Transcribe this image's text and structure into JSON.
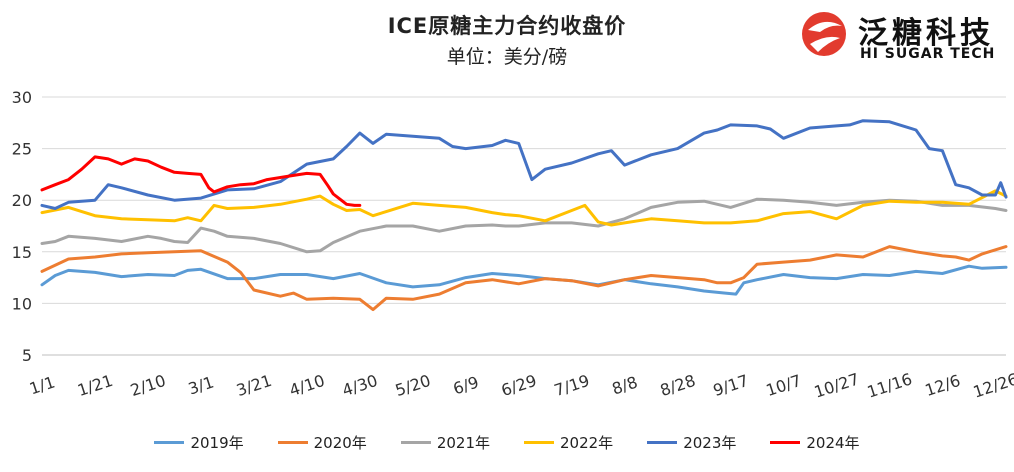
{
  "header": {
    "title": "ICE原糖主力合约收盘价",
    "subtitle": "单位：美分/磅"
  },
  "logo": {
    "name_cn": "泛糖科技",
    "name_en": "HI SUGAR TECH",
    "mark_icon": "hi-sugar-logo-icon"
  },
  "chart_data": {
    "type": "line",
    "title": "ICE原糖主力合约收盘价",
    "subtitle": "单位：美分/磅",
    "ylim": [
      5,
      30
    ],
    "yticks": [
      5,
      10,
      15,
      20,
      25,
      30
    ],
    "xlim": [
      0,
      364
    ],
    "xticks": [
      {
        "label": "1/1",
        "x": 0
      },
      {
        "label": "1/21",
        "x": 20
      },
      {
        "label": "2/10",
        "x": 40
      },
      {
        "label": "3/1",
        "x": 60
      },
      {
        "label": "3/21",
        "x": 80
      },
      {
        "label": "4/10",
        "x": 100
      },
      {
        "label": "4/30",
        "x": 120
      },
      {
        "label": "5/20",
        "x": 140
      },
      {
        "label": "6/9",
        "x": 160
      },
      {
        "label": "6/29",
        "x": 180
      },
      {
        "label": "7/19",
        "x": 200
      },
      {
        "label": "8/8",
        "x": 220
      },
      {
        "label": "8/28",
        "x": 240
      },
      {
        "label": "9/17",
        "x": 260
      },
      {
        "label": "10/7",
        "x": 280
      },
      {
        "label": "10/27",
        "x": 300
      },
      {
        "label": "11/16",
        "x": 320
      },
      {
        "label": "12/6",
        "x": 340
      },
      {
        "label": "12/26",
        "x": 360
      }
    ],
    "grid": true,
    "legend_position": "bottom",
    "series": [
      {
        "name": "2019年",
        "color": "#5b9bd5",
        "x": [
          0,
          5,
          10,
          20,
          30,
          40,
          50,
          55,
          60,
          70,
          80,
          90,
          100,
          110,
          120,
          130,
          140,
          150,
          160,
          170,
          180,
          190,
          200,
          210,
          220,
          230,
          240,
          250,
          258,
          262,
          265,
          270,
          280,
          290,
          300,
          310,
          320,
          330,
          340,
          350,
          355,
          364
        ],
        "y": [
          11.8,
          12.7,
          13.2,
          13.0,
          12.6,
          12.8,
          12.7,
          13.2,
          13.3,
          12.4,
          12.4,
          12.8,
          12.8,
          12.4,
          12.9,
          12.0,
          11.6,
          11.8,
          12.5,
          12.9,
          12.7,
          12.4,
          12.2,
          11.8,
          12.3,
          11.9,
          11.6,
          11.2,
          11.0,
          10.9,
          12.0,
          12.3,
          12.8,
          12.5,
          12.4,
          12.8,
          12.7,
          13.1,
          12.9,
          13.6,
          13.4,
          13.5
        ]
      },
      {
        "name": "2020年",
        "color": "#ed7d31",
        "x": [
          0,
          10,
          20,
          30,
          40,
          50,
          60,
          70,
          75,
          80,
          90,
          95,
          100,
          110,
          120,
          125,
          130,
          140,
          150,
          160,
          170,
          180,
          190,
          200,
          210,
          220,
          230,
          240,
          250,
          255,
          260,
          265,
          270,
          280,
          290,
          300,
          310,
          320,
          330,
          340,
          345,
          350,
          355,
          364
        ],
        "y": [
          13.1,
          14.3,
          14.5,
          14.8,
          14.9,
          15.0,
          15.1,
          14.0,
          13.0,
          11.3,
          10.7,
          11.0,
          10.4,
          10.5,
          10.4,
          9.4,
          10.5,
          10.4,
          10.9,
          12.0,
          12.3,
          11.9,
          12.4,
          12.2,
          11.7,
          12.3,
          12.7,
          12.5,
          12.3,
          12.0,
          12.0,
          12.5,
          13.8,
          14.0,
          14.2,
          14.7,
          14.5,
          15.5,
          15.0,
          14.6,
          14.5,
          14.2,
          14.8,
          15.5
        ]
      },
      {
        "name": "2021年",
        "color": "#a5a5a5",
        "x": [
          0,
          5,
          10,
          20,
          30,
          40,
          45,
          50,
          55,
          60,
          65,
          70,
          80,
          90,
          100,
          105,
          110,
          120,
          130,
          140,
          150,
          160,
          170,
          175,
          180,
          190,
          200,
          210,
          220,
          230,
          240,
          250,
          260,
          270,
          280,
          290,
          300,
          310,
          320,
          330,
          340,
          350,
          360,
          364
        ],
        "y": [
          15.8,
          16.0,
          16.5,
          16.3,
          16.0,
          16.5,
          16.3,
          16.0,
          15.9,
          17.3,
          17.0,
          16.5,
          16.3,
          15.8,
          15.0,
          15.1,
          15.9,
          17.0,
          17.5,
          17.5,
          17.0,
          17.5,
          17.6,
          17.5,
          17.5,
          17.8,
          17.8,
          17.5,
          18.2,
          19.3,
          19.8,
          19.9,
          19.3,
          20.1,
          20.0,
          19.8,
          19.5,
          19.8,
          20.0,
          19.9,
          19.5,
          19.5,
          19.2,
          19.0
        ]
      },
      {
        "name": "2022年",
        "color": "#ffc000",
        "x": [
          0,
          10,
          20,
          30,
          40,
          50,
          55,
          60,
          65,
          70,
          80,
          90,
          100,
          105,
          110,
          115,
          120,
          125,
          130,
          140,
          150,
          160,
          170,
          175,
          180,
          190,
          200,
          205,
          210,
          215,
          220,
          230,
          240,
          250,
          260,
          270,
          280,
          290,
          300,
          310,
          320,
          330,
          340,
          350,
          360,
          364
        ],
        "y": [
          18.8,
          19.3,
          18.5,
          18.2,
          18.1,
          18.0,
          18.3,
          18.0,
          19.5,
          19.2,
          19.3,
          19.6,
          20.1,
          20.4,
          19.6,
          19.0,
          19.1,
          18.5,
          18.9,
          19.7,
          19.5,
          19.3,
          18.8,
          18.6,
          18.5,
          18.0,
          19.0,
          19.5,
          17.9,
          17.6,
          17.8,
          18.2,
          18.0,
          17.8,
          17.8,
          18.0,
          18.7,
          18.9,
          18.2,
          19.5,
          19.9,
          19.8,
          19.8,
          19.6,
          20.9,
          20.4
        ]
      },
      {
        "name": "2023年",
        "color": "#4472c4",
        "x": [
          0,
          5,
          10,
          20,
          25,
          30,
          40,
          50,
          60,
          70,
          80,
          90,
          100,
          110,
          115,
          120,
          125,
          130,
          140,
          150,
          155,
          160,
          170,
          175,
          180,
          185,
          190,
          200,
          210,
          215,
          220,
          230,
          240,
          250,
          255,
          260,
          270,
          275,
          280,
          290,
          300,
          305,
          310,
          320,
          330,
          335,
          340,
          345,
          350,
          355,
          360,
          362,
          364
        ],
        "y": [
          19.5,
          19.2,
          19.8,
          20.0,
          21.5,
          21.2,
          20.5,
          20.0,
          20.2,
          21.0,
          21.1,
          21.8,
          23.5,
          24.0,
          25.2,
          26.5,
          25.5,
          26.4,
          26.2,
          26.0,
          25.2,
          25.0,
          25.3,
          25.8,
          25.5,
          22.0,
          23.0,
          23.6,
          24.5,
          24.8,
          23.4,
          24.4,
          25.0,
          26.5,
          26.8,
          27.3,
          27.2,
          26.9,
          26.0,
          27.0,
          27.2,
          27.3,
          27.7,
          27.6,
          26.8,
          25.0,
          24.8,
          21.5,
          21.2,
          20.5,
          20.5,
          21.7,
          20.3
        ]
      },
      {
        "name": "2024年",
        "color": "#ff0000",
        "x": [
          0,
          5,
          10,
          15,
          20,
          25,
          30,
          35,
          40,
          45,
          50,
          55,
          60,
          63,
          65,
          70,
          75,
          80,
          85,
          90,
          95,
          100,
          105,
          108,
          110,
          113,
          115,
          118,
          120
        ],
        "y": [
          21.0,
          21.5,
          22.0,
          23.0,
          24.2,
          24.0,
          23.5,
          24.0,
          23.8,
          23.2,
          22.7,
          22.6,
          22.5,
          21.2,
          20.8,
          21.3,
          21.5,
          21.6,
          22.0,
          22.2,
          22.4,
          22.6,
          22.5,
          21.4,
          20.6,
          20.0,
          19.6,
          19.5,
          19.5
        ]
      }
    ]
  }
}
